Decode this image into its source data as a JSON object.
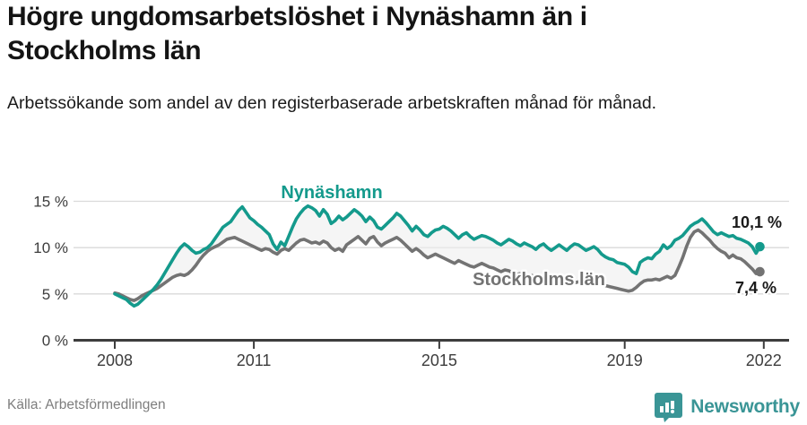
{
  "header": {
    "title": "Högre ungdomsarbetslöshet i Nynäshamn än i Stockholms län",
    "subtitle": "Arbetssökande som andel av den registerbaserade arbetskraften månad för månad."
  },
  "footer": {
    "source": "Källa: Arbetsförmedlingen",
    "brand": "Newsworthy",
    "brand_icon": "bar-chart-speech-bubble-icon"
  },
  "colors": {
    "nynashamn": "#149a8c",
    "stockholm": "#737373",
    "area_fill": "#eeeeee",
    "gridline": "#dadada",
    "axis": "#3d3d3d",
    "end_dot_nynashamn": "#149a8c",
    "end_dot_stockholm": "#6f6f6f",
    "brand_teal": "#3a9596"
  },
  "chart_data": {
    "type": "line",
    "title": "Högre ungdomsarbetslöshet i Nynäshamn än i Stockholms län",
    "subtitle": "Arbetssökande som andel av den registerbaserade arbetskraften månad för månad.",
    "x_unit": "month",
    "x_start": "2008-01",
    "x_end": "2021-12",
    "x_tick_years": [
      2008,
      2011,
      2015,
      2019,
      2022
    ],
    "x_tick_labels": [
      "2008",
      "2011",
      "2015",
      "2019",
      "2022"
    ],
    "y_tick_values": [
      0,
      5,
      10,
      15
    ],
    "y_tick_labels": [
      "0 %",
      "5 %",
      "10 %",
      "15 %"
    ],
    "ylim": [
      0,
      16.5
    ],
    "grid": "horizontal",
    "legend_position": "inline-labels",
    "area_between_series": true,
    "series": [
      {
        "name": "Nynäshamn",
        "color": "#149a8c",
        "end_label": "10,1 %",
        "end_value": 10.1,
        "values": [
          5.0,
          4.8,
          4.6,
          4.4,
          4.0,
          3.7,
          3.9,
          4.3,
          4.7,
          5.1,
          5.5,
          6.0,
          6.6,
          7.3,
          8.0,
          8.7,
          9.4,
          10.0,
          10.4,
          10.1,
          9.7,
          9.4,
          9.5,
          9.8,
          10.0,
          10.4,
          11.0,
          11.6,
          12.2,
          12.5,
          12.8,
          13.4,
          14.0,
          14.4,
          13.8,
          13.2,
          12.9,
          12.5,
          12.2,
          11.8,
          11.4,
          10.4,
          9.8,
          10.6,
          10.2,
          11.2,
          12.2,
          13.1,
          13.7,
          14.2,
          14.5,
          14.3,
          14.0,
          13.4,
          14.1,
          13.6,
          12.6,
          12.9,
          13.4,
          13.0,
          13.3,
          13.7,
          14.1,
          13.8,
          13.4,
          12.8,
          13.3,
          12.9,
          12.2,
          12.0,
          12.4,
          12.8,
          13.2,
          13.7,
          13.4,
          12.9,
          12.4,
          11.8,
          12.3,
          11.9,
          11.4,
          11.2,
          11.6,
          11.9,
          12.0,
          12.3,
          12.1,
          11.8,
          11.4,
          11.0,
          11.4,
          11.6,
          11.2,
          10.9,
          11.1,
          11.3,
          11.2,
          11.0,
          10.8,
          10.5,
          10.3,
          10.6,
          10.9,
          10.7,
          10.4,
          10.2,
          10.5,
          10.3,
          10.1,
          9.8,
          10.2,
          10.4,
          10.0,
          9.7,
          10.0,
          10.3,
          10.0,
          9.7,
          10.1,
          10.4,
          10.3,
          10.0,
          9.7,
          9.9,
          10.1,
          9.8,
          9.3,
          9.0,
          8.8,
          8.7,
          8.4,
          8.3,
          8.2,
          7.9,
          7.4,
          7.2,
          8.4,
          8.7,
          8.9,
          8.8,
          9.3,
          9.6,
          10.3,
          9.9,
          10.2,
          10.8,
          11.0,
          11.3,
          11.8,
          12.3,
          12.6,
          12.8,
          13.1,
          12.7,
          12.2,
          11.7,
          11.4,
          11.6,
          11.4,
          11.2,
          11.3,
          11.0,
          10.9,
          10.7,
          10.5,
          10.1,
          9.4,
          10.1
        ]
      },
      {
        "name": "Stockholms län",
        "color": "#737373",
        "end_label": "7,4 %",
        "end_value": 7.4,
        "values": [
          5.1,
          5.0,
          4.8,
          4.6,
          4.4,
          4.3,
          4.5,
          4.8,
          5.0,
          5.2,
          5.4,
          5.6,
          5.9,
          6.2,
          6.5,
          6.8,
          7.0,
          7.1,
          7.0,
          7.2,
          7.6,
          8.1,
          8.7,
          9.2,
          9.6,
          9.9,
          10.1,
          10.3,
          10.6,
          10.9,
          11.0,
          11.1,
          10.9,
          10.7,
          10.5,
          10.3,
          10.1,
          9.9,
          9.7,
          9.9,
          9.8,
          9.5,
          9.3,
          9.7,
          9.9,
          9.7,
          10.1,
          10.5,
          10.8,
          10.9,
          10.7,
          10.5,
          10.6,
          10.4,
          10.7,
          10.5,
          10.0,
          9.7,
          9.9,
          9.6,
          10.3,
          10.6,
          10.9,
          11.2,
          10.8,
          10.4,
          11.0,
          11.2,
          10.6,
          10.2,
          10.5,
          10.7,
          10.9,
          11.1,
          10.8,
          10.4,
          10.0,
          9.6,
          9.9,
          9.6,
          9.2,
          8.9,
          9.1,
          9.3,
          9.1,
          8.9,
          8.7,
          8.5,
          8.3,
          8.6,
          8.4,
          8.2,
          8.0,
          7.9,
          8.1,
          8.3,
          8.1,
          7.9,
          7.8,
          7.6,
          7.4,
          7.6,
          7.5,
          7.3,
          7.1,
          7.2,
          7.0,
          6.9,
          7.0,
          6.8,
          6.7,
          6.9,
          6.8,
          6.6,
          6.8,
          6.7,
          6.5,
          6.3,
          6.4,
          6.2,
          6.3,
          6.2,
          6.3,
          6.3,
          6.2,
          6.2,
          6.0,
          5.9,
          5.8,
          5.7,
          5.6,
          5.5,
          5.4,
          5.3,
          5.4,
          5.7,
          6.1,
          6.4,
          6.5,
          6.5,
          6.6,
          6.5,
          6.7,
          6.9,
          6.7,
          7.0,
          7.9,
          8.9,
          10.1,
          11.1,
          11.7,
          11.9,
          11.6,
          11.2,
          10.8,
          10.3,
          9.9,
          9.6,
          9.4,
          8.9,
          9.2,
          8.9,
          8.8,
          8.5,
          8.1,
          7.7,
          7.2,
          7.4
        ]
      }
    ]
  }
}
